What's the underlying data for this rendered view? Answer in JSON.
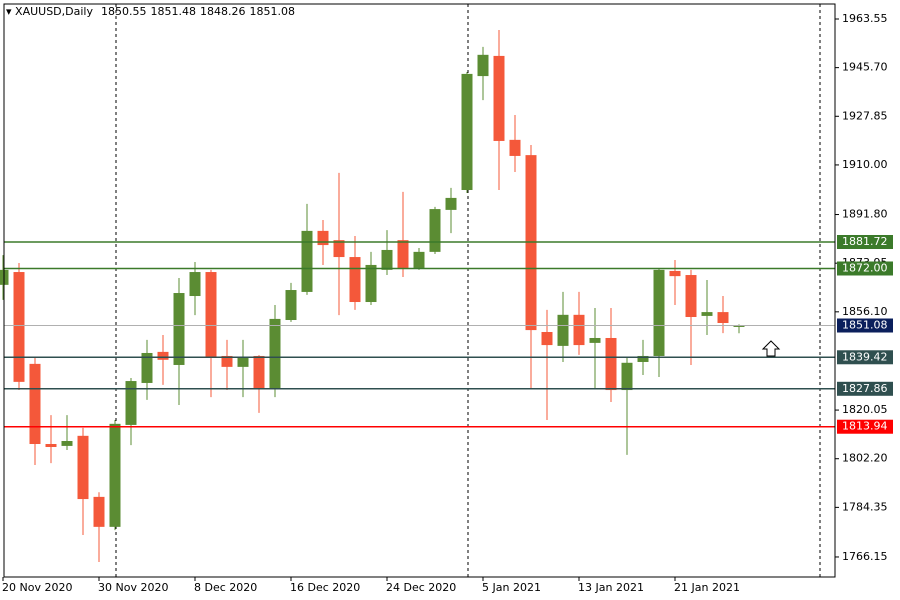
{
  "chart_data": {
    "type": "candlestick",
    "title": "XAUUSD,Daily",
    "categories": [
      "20 Nov 2020",
      null,
      null,
      null,
      null,
      null,
      "30 Nov 2020",
      null,
      null,
      null,
      null,
      null,
      "8 Dec 2020",
      null,
      null,
      null,
      null,
      null,
      "16 Dec 2020",
      null,
      null,
      null,
      null,
      null,
      "24 Dec 2020",
      null,
      null,
      null,
      null,
      null,
      "5 Jan 2021",
      null,
      null,
      null,
      null,
      null,
      "13 Jan 2021",
      null,
      null,
      null,
      null,
      null,
      "21 Jan 2021",
      null,
      null,
      null,
      null
    ],
    "open": [
      1866.0,
      1870.7,
      1837.0,
      1807.6,
      1806.9,
      1810.6,
      1788.2,
      1777.2,
      1814.6,
      1830.0,
      1841.4,
      1836.6,
      1861.9,
      1870.7,
      1839.9,
      1835.9,
      1839.9,
      1828.1,
      1853.1,
      1863.4,
      1885.8,
      1882.4,
      1876.2,
      1859.7,
      1871.5,
      1882.4,
      1872.2,
      1878.1,
      1893.5,
      1900.8,
      1942.6,
      1950.0,
      1919.2,
      1913.6,
      1848.7,
      1843.6,
      1855.0,
      1844.7,
      1846.5,
      1827.4,
      1837.7,
      1839.9,
      1871.1,
      1869.6,
      1854.6,
      1856.0,
      1850.55
    ],
    "high": [
      1876.9,
      1874.0,
      1839.2,
      1818.2,
      1818.2,
      1813.5,
      1789.9,
      1816.4,
      1831.8,
      1845.8,
      1847.6,
      1868.5,
      1874.4,
      1871.5,
      1845.8,
      1845.8,
      1840.2,
      1858.6,
      1866.7,
      1895.7,
      1889.8,
      1907.1,
      1883.9,
      1878.1,
      1886.1,
      1900.1,
      1879.5,
      1894.6,
      1901.6,
      1944.1,
      1953.3,
      1959.5,
      1928.3,
      1917.3,
      1856.8,
      1863.4,
      1863.4,
      1857.5,
      1857.5,
      1839.6,
      1845.8,
      1872.2,
      1875.1,
      1871.5,
      1867.8,
      1861.9,
      1851.48
    ],
    "low": [
      1860.5,
      1827.4,
      1799.9,
      1800.6,
      1805.4,
      1774.2,
      1764.3,
      1776.0,
      1807.2,
      1823.8,
      1829.3,
      1821.9,
      1854.9,
      1824.8,
      1827.4,
      1824.8,
      1819.0,
      1824.8,
      1852.4,
      1862.3,
      1873.3,
      1854.9,
      1856.8,
      1858.6,
      1869.6,
      1868.9,
      1871.5,
      1877.3,
      1885.0,
      1899.7,
      1933.8,
      1900.8,
      1907.4,
      1828.1,
      1816.4,
      1837.7,
      1840.3,
      1828.1,
      1823.0,
      1803.6,
      1832.9,
      1832.2,
      1858.6,
      1836.6,
      1847.6,
      1848.3,
      1848.26
    ],
    "close": [
      1871.5,
      1830.4,
      1807.6,
      1806.5,
      1808.7,
      1787.4,
      1777.2,
      1815.0,
      1830.7,
      1841.0,
      1838.5,
      1863.0,
      1870.7,
      1839.2,
      1835.9,
      1839.6,
      1828.1,
      1853.5,
      1864.1,
      1885.8,
      1880.6,
      1876.2,
      1859.7,
      1873.3,
      1878.8,
      1872.2,
      1878.1,
      1893.8,
      1897.9,
      1943.4,
      1950.4,
      1918.8,
      1913.3,
      1849.4,
      1843.9,
      1855.0,
      1843.9,
      1846.5,
      1827.4,
      1837.4,
      1839.9,
      1871.5,
      1869.2,
      1854.2,
      1856.0,
      1852.0,
      1851.08
    ],
    "up_color": "#5b8c33",
    "down_color": "#f4583a",
    "ylim": [
      1758.8,
      1969.05
    ],
    "yticks": [
      1963.55,
      {
        "value": 1945.7,
        "label": "1945.70"
      },
      {
        "value": 1927.85,
        "label": "1927.85"
      },
      {
        "value": 1910,
        "label": "1910.00"
      },
      {
        "value": 1891.8,
        "label": "1891.80"
      },
      1873.95,
      {
        "value": 1856.1,
        "label": "1856.10"
      },
      1820.05,
      {
        "value": 1802.2,
        "label": "1802.20"
      },
      1784.35,
      1766.15
    ],
    "levels": [
      {
        "value": 1881.72,
        "color": "#3b7a2a"
      },
      {
        "value": 1872,
        "label": "1872.00",
        "color": "#3b7a2a"
      },
      {
        "value": 1851.08,
        "color": "#0b1f5c",
        "line_color": "#b0b0b0"
      },
      {
        "value": 1839.42,
        "color": "#2f4f4f"
      },
      {
        "value": 1827.86,
        "color": "#2f4f4f"
      },
      {
        "value": 1813.94,
        "color": "#ff0000"
      }
    ]
  }
}
